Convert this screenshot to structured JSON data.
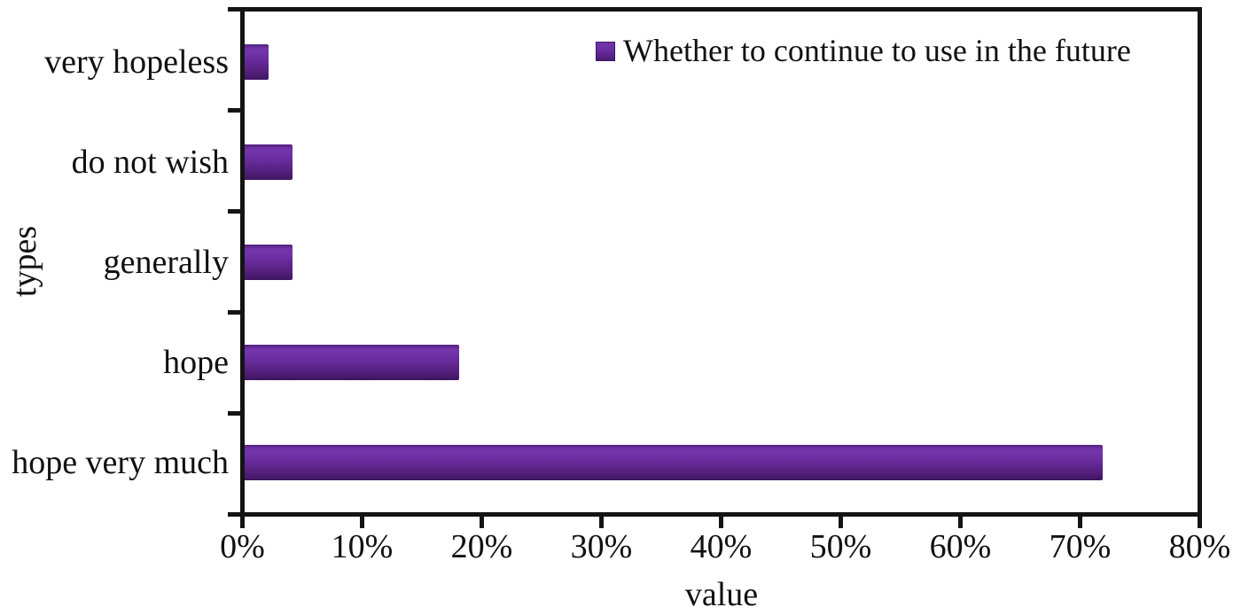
{
  "chart_data": {
    "type": "bar",
    "orientation": "horizontal",
    "title": "",
    "categories": [
      "very hopeless",
      "do not wish",
      "generally",
      "hope",
      "hope very much"
    ],
    "series": [
      {
        "name": "Whether to continue to use in the future",
        "values": [
          2,
          4,
          4,
          18,
          72
        ]
      }
    ],
    "value_unit": "percent",
    "xlabel": "value",
    "ylabel": "types",
    "xlim": [
      0,
      80
    ],
    "x_ticks": [
      "0%",
      "10%",
      "20%",
      "30%",
      "40%",
      "50%",
      "60%",
      "70%",
      "80%"
    ],
    "grid": false,
    "legend_position": "inside-top-right",
    "colors": {
      "bar_main": "#6a2d9f",
      "bar_gradient_top": "#52207e",
      "bar_gradient_light": "#7536ad",
      "bar_gradient_bottom": "#3e155e",
      "axis": "#141414",
      "text": "#111111",
      "background": "#ffffff"
    }
  },
  "legend": {
    "label": "Whether to continue to use in the future"
  },
  "axes": {
    "x_title": "value",
    "y_title": "types"
  }
}
